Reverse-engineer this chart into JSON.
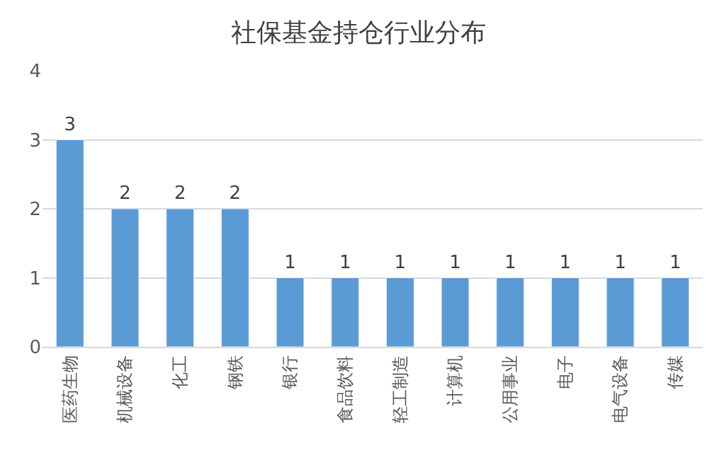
{
  "chart_data": {
    "type": "bar",
    "title": "社保基金持仓行业分布",
    "categories": [
      "医药生物",
      "机械设备",
      "化工",
      "钢铁",
      "银行",
      "食品饮料",
      "轻工制造",
      "计算机",
      "公用事业",
      "电子",
      "电气设备",
      "传媒"
    ],
    "values": [
      3,
      2,
      2,
      2,
      1,
      1,
      1,
      1,
      1,
      1,
      1,
      1
    ],
    "color": "#5b9bd5",
    "ylim": [
      0,
      4
    ],
    "yticks": [
      0,
      1,
      2,
      3,
      4
    ],
    "grid": "y",
    "data_labels": true
  }
}
